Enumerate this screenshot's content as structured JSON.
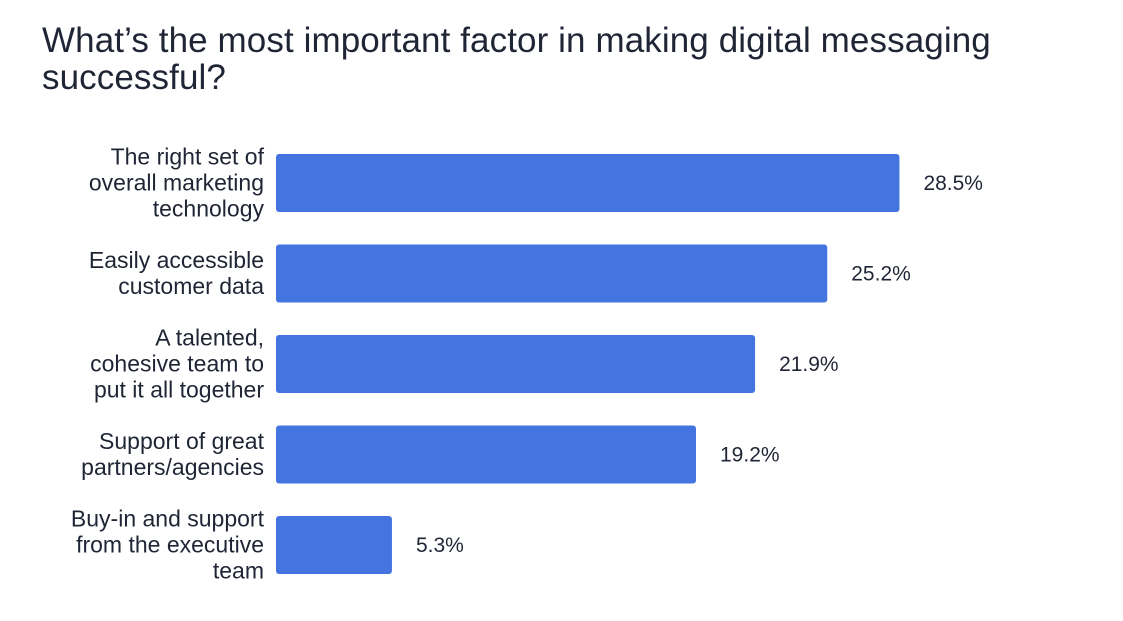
{
  "chart_data": {
    "type": "bar",
    "orientation": "horizontal",
    "title": "What’s the most important factor in making digital messaging successful?",
    "categories": [
      "The right set of overall marketing technology",
      "Easily accessible customer data",
      "A talented, cohesive team to put it all together",
      "Support of great partners/agencies",
      "Buy-in and support from the executive team"
    ],
    "category_lines": [
      [
        "The right set of",
        "overall marketing",
        "technology"
      ],
      [
        "Easily accessible",
        "customer data"
      ],
      [
        "A talented,",
        "cohesive team to",
        "put it all together"
      ],
      [
        "Support of great",
        "partners/agencies"
      ],
      [
        "Buy-in and support",
        "from the executive",
        "team"
      ]
    ],
    "values": [
      28.5,
      25.2,
      21.9,
      19.2,
      5.3
    ],
    "value_labels": [
      "28.5%",
      "25.2%",
      "21.9%",
      "19.2%",
      "5.3%"
    ],
    "xlim": [
      0,
      40
    ],
    "xlabel": "",
    "ylabel": "",
    "grid": false,
    "legend": "none",
    "bar_color": "#4374e0",
    "text_color": "#1f2535"
  }
}
